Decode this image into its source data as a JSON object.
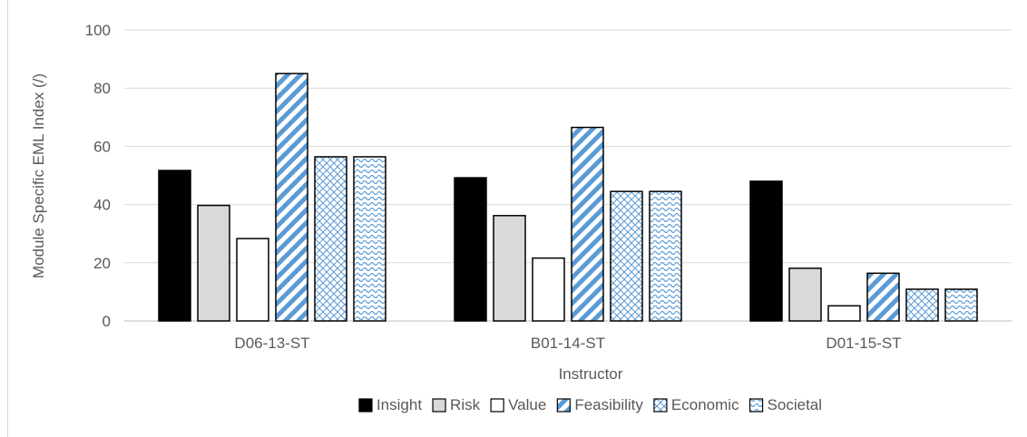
{
  "chart_data": {
    "type": "bar",
    "title": "",
    "xlabel": "Instructor",
    "ylabel": "Module Specific EML Index (/)",
    "ylim": [
      0,
      100
    ],
    "yticks": [
      0,
      20,
      40,
      60,
      80,
      100
    ],
    "grid": true,
    "legend_position": "bottom",
    "categories": [
      "D06-13-ST",
      "B01-14-ST",
      "D01-15-ST"
    ],
    "series": [
      {
        "name": "Insight",
        "values": [
          51.7,
          49.2,
          48.0
        ],
        "pattern": "solid-black"
      },
      {
        "name": "Risk",
        "values": [
          39.7,
          36.2,
          18.1
        ],
        "pattern": "solid-gray"
      },
      {
        "name": "Value",
        "values": [
          28.3,
          21.6,
          5.2
        ],
        "pattern": "white"
      },
      {
        "name": "Feasibility",
        "values": [
          85.0,
          66.5,
          16.4
        ],
        "pattern": "diagonal-stripes"
      },
      {
        "name": "Economic",
        "values": [
          56.4,
          44.5,
          10.9
        ],
        "pattern": "diamond-grid"
      },
      {
        "name": "Societal",
        "values": [
          56.4,
          44.5,
          10.9
        ],
        "pattern": "wave"
      }
    ],
    "colors": {
      "insight": "#000000",
      "risk": "#d9d9d9",
      "value": "#ffffff",
      "pattern_blue": "#5b9bd5",
      "grid": "#d9d9d9",
      "axis": "#bfbfbf"
    }
  }
}
